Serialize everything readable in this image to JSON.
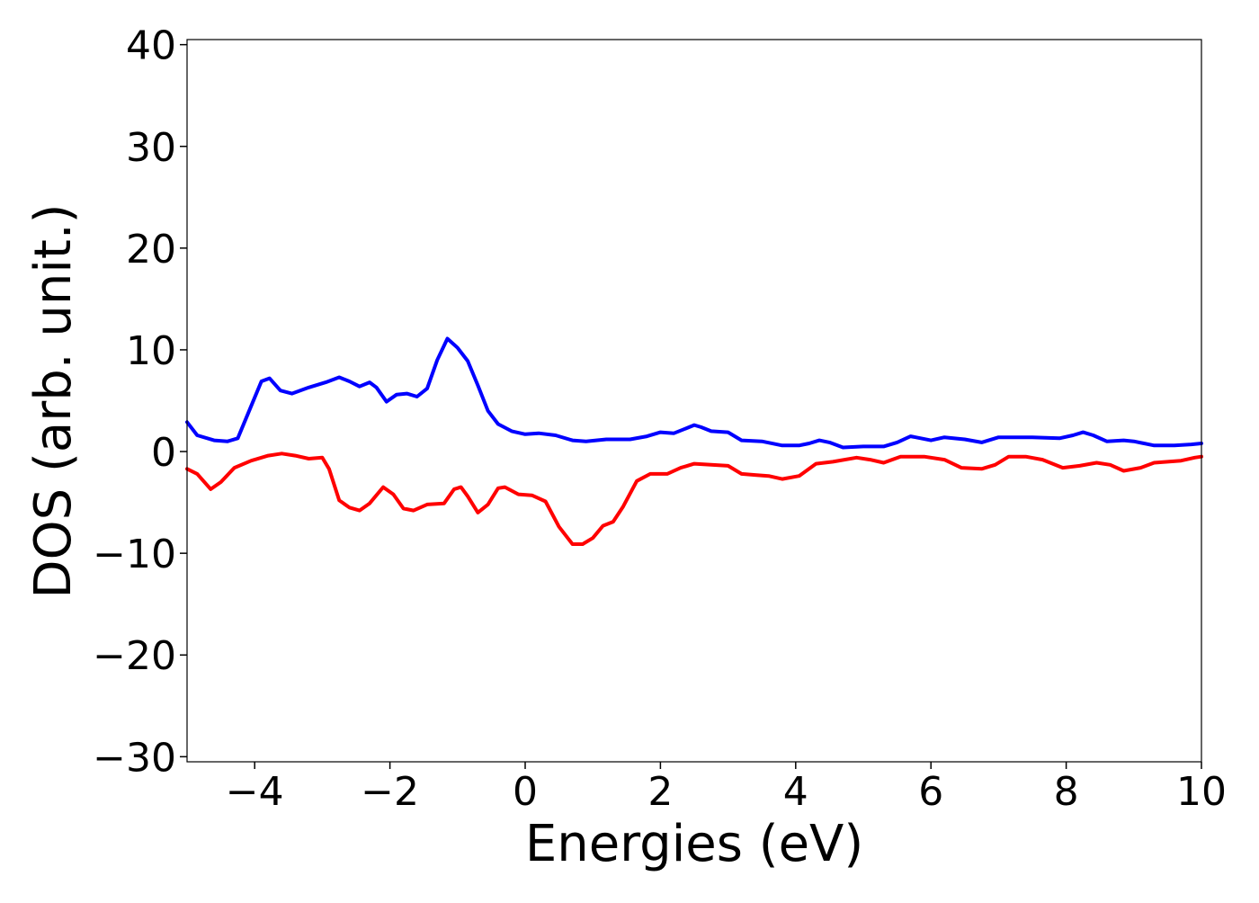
{
  "chart_data": {
    "type": "line",
    "title": "",
    "xlabel": "Energies (eV)",
    "ylabel": "DOS (arb. unit.)",
    "xlim": [
      -5,
      10
    ],
    "ylim": [
      -30.5,
      40.5
    ],
    "xticks": [
      -4,
      -2,
      0,
      2,
      4,
      6,
      8,
      10
    ],
    "xtick_labels": [
      "−4",
      "−2",
      "0",
      "2",
      "4",
      "6",
      "8",
      "10"
    ],
    "yticks": [
      -30,
      -20,
      -10,
      0,
      10,
      20,
      30,
      40
    ],
    "ytick_labels": [
      "−30",
      "−20",
      "−10",
      "0",
      "10",
      "20",
      "30",
      "40"
    ],
    "grid": false,
    "legend": "none",
    "series": [
      {
        "color": "#0000ff",
        "points": [
          [
            -5.0,
            2.9
          ],
          [
            -4.85,
            1.6
          ],
          [
            -4.6,
            1.1
          ],
          [
            -4.4,
            1.0
          ],
          [
            -4.25,
            1.3
          ],
          [
            -4.05,
            4.5
          ],
          [
            -3.9,
            6.9
          ],
          [
            -3.78,
            7.2
          ],
          [
            -3.62,
            6.0
          ],
          [
            -3.45,
            5.7
          ],
          [
            -3.2,
            6.3
          ],
          [
            -2.95,
            6.8
          ],
          [
            -2.75,
            7.3
          ],
          [
            -2.6,
            6.9
          ],
          [
            -2.45,
            6.4
          ],
          [
            -2.3,
            6.8
          ],
          [
            -2.2,
            6.3
          ],
          [
            -2.05,
            4.9
          ],
          [
            -1.9,
            5.6
          ],
          [
            -1.75,
            5.7
          ],
          [
            -1.6,
            5.4
          ],
          [
            -1.45,
            6.2
          ],
          [
            -1.3,
            9.0
          ],
          [
            -1.15,
            11.1
          ],
          [
            -1.0,
            10.2
          ],
          [
            -0.85,
            8.9
          ],
          [
            -0.7,
            6.5
          ],
          [
            -0.55,
            4.0
          ],
          [
            -0.4,
            2.7
          ],
          [
            -0.2,
            2.0
          ],
          [
            0.0,
            1.7
          ],
          [
            0.2,
            1.8
          ],
          [
            0.45,
            1.6
          ],
          [
            0.7,
            1.1
          ],
          [
            0.9,
            1.0
          ],
          [
            1.2,
            1.2
          ],
          [
            1.55,
            1.2
          ],
          [
            1.8,
            1.5
          ],
          [
            2.0,
            1.9
          ],
          [
            2.2,
            1.8
          ],
          [
            2.35,
            2.2
          ],
          [
            2.5,
            2.6
          ],
          [
            2.6,
            2.4
          ],
          [
            2.75,
            2.0
          ],
          [
            3.0,
            1.9
          ],
          [
            3.2,
            1.1
          ],
          [
            3.5,
            1.0
          ],
          [
            3.8,
            0.6
          ],
          [
            4.05,
            0.6
          ],
          [
            4.2,
            0.8
          ],
          [
            4.35,
            1.1
          ],
          [
            4.5,
            0.9
          ],
          [
            4.7,
            0.4
          ],
          [
            5.0,
            0.5
          ],
          [
            5.3,
            0.5
          ],
          [
            5.5,
            0.9
          ],
          [
            5.7,
            1.5
          ],
          [
            5.85,
            1.3
          ],
          [
            6.0,
            1.1
          ],
          [
            6.2,
            1.4
          ],
          [
            6.5,
            1.2
          ],
          [
            6.75,
            0.9
          ],
          [
            7.0,
            1.4
          ],
          [
            7.5,
            1.4
          ],
          [
            7.9,
            1.3
          ],
          [
            8.1,
            1.6
          ],
          [
            8.25,
            1.9
          ],
          [
            8.4,
            1.6
          ],
          [
            8.6,
            1.0
          ],
          [
            8.85,
            1.1
          ],
          [
            9.0,
            1.0
          ],
          [
            9.3,
            0.6
          ],
          [
            9.6,
            0.6
          ],
          [
            9.85,
            0.7
          ],
          [
            10.0,
            0.8
          ]
        ]
      },
      {
        "color": "#ff0000",
        "points": [
          [
            -5.0,
            -1.7
          ],
          [
            -4.85,
            -2.2
          ],
          [
            -4.65,
            -3.7
          ],
          [
            -4.5,
            -3.0
          ],
          [
            -4.3,
            -1.6
          ],
          [
            -4.05,
            -0.9
          ],
          [
            -3.8,
            -0.4
          ],
          [
            -3.6,
            -0.2
          ],
          [
            -3.4,
            -0.4
          ],
          [
            -3.2,
            -0.7
          ],
          [
            -3.0,
            -0.6
          ],
          [
            -2.9,
            -1.7
          ],
          [
            -2.75,
            -4.8
          ],
          [
            -2.6,
            -5.5
          ],
          [
            -2.45,
            -5.8
          ],
          [
            -2.3,
            -5.1
          ],
          [
            -2.1,
            -3.5
          ],
          [
            -1.95,
            -4.2
          ],
          [
            -1.8,
            -5.6
          ],
          [
            -1.65,
            -5.8
          ],
          [
            -1.45,
            -5.2
          ],
          [
            -1.2,
            -5.1
          ],
          [
            -1.05,
            -3.7
          ],
          [
            -0.95,
            -3.5
          ],
          [
            -0.85,
            -4.4
          ],
          [
            -0.7,
            -6.0
          ],
          [
            -0.55,
            -5.2
          ],
          [
            -0.4,
            -3.6
          ],
          [
            -0.3,
            -3.5
          ],
          [
            -0.1,
            -4.2
          ],
          [
            0.1,
            -4.3
          ],
          [
            0.3,
            -4.9
          ],
          [
            0.5,
            -7.4
          ],
          [
            0.7,
            -9.1
          ],
          [
            0.85,
            -9.1
          ],
          [
            1.0,
            -8.5
          ],
          [
            1.15,
            -7.3
          ],
          [
            1.3,
            -6.9
          ],
          [
            1.45,
            -5.4
          ],
          [
            1.65,
            -2.9
          ],
          [
            1.85,
            -2.2
          ],
          [
            2.1,
            -2.2
          ],
          [
            2.3,
            -1.6
          ],
          [
            2.5,
            -1.2
          ],
          [
            2.75,
            -1.3
          ],
          [
            3.0,
            -1.4
          ],
          [
            3.2,
            -2.2
          ],
          [
            3.4,
            -2.3
          ],
          [
            3.6,
            -2.4
          ],
          [
            3.8,
            -2.7
          ],
          [
            4.05,
            -2.4
          ],
          [
            4.3,
            -1.2
          ],
          [
            4.55,
            -1.0
          ],
          [
            4.9,
            -0.6
          ],
          [
            5.1,
            -0.8
          ],
          [
            5.3,
            -1.1
          ],
          [
            5.55,
            -0.5
          ],
          [
            5.9,
            -0.5
          ],
          [
            6.2,
            -0.8
          ],
          [
            6.45,
            -1.6
          ],
          [
            6.75,
            -1.7
          ],
          [
            6.95,
            -1.3
          ],
          [
            7.15,
            -0.5
          ],
          [
            7.4,
            -0.5
          ],
          [
            7.65,
            -0.8
          ],
          [
            7.95,
            -1.6
          ],
          [
            8.2,
            -1.4
          ],
          [
            8.45,
            -1.1
          ],
          [
            8.65,
            -1.3
          ],
          [
            8.85,
            -1.9
          ],
          [
            9.1,
            -1.6
          ],
          [
            9.3,
            -1.1
          ],
          [
            9.7,
            -0.9
          ],
          [
            9.9,
            -0.6
          ],
          [
            10.0,
            -0.5
          ]
        ]
      }
    ]
  }
}
